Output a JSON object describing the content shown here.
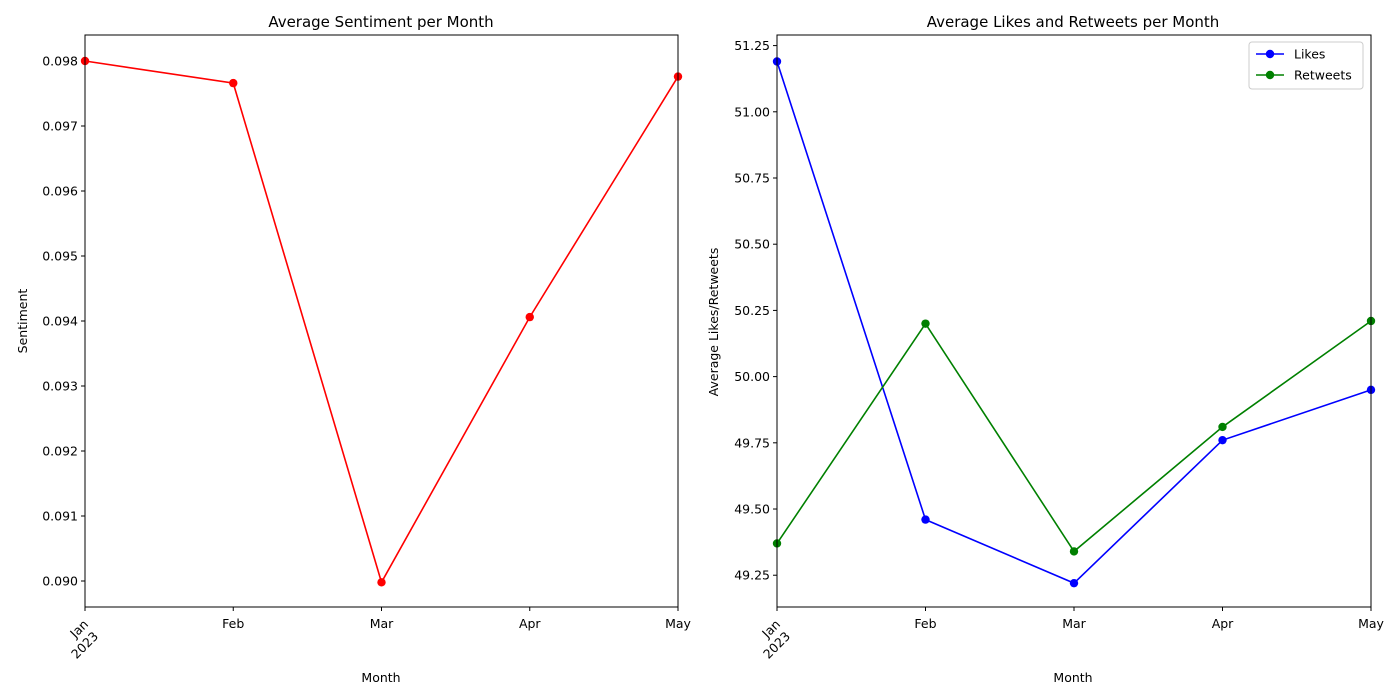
{
  "chart_data": [
    {
      "type": "line",
      "title": "Average Sentiment per Month",
      "xlabel": "Month",
      "ylabel": "Sentiment",
      "categories": [
        "Jan",
        "Feb",
        "Mar",
        "Apr",
        "May"
      ],
      "x_year_label": "2023",
      "ylim": [
        0.0896,
        0.0984
      ],
      "yticks": [
        "0.090",
        "0.091",
        "0.092",
        "0.093",
        "0.094",
        "0.095",
        "0.096",
        "0.097",
        "0.098"
      ],
      "grid": false,
      "series": [
        {
          "color": "#ff0000",
          "values": [
            0.098,
            0.09766,
            0.08998,
            0.09406,
            0.09776
          ]
        }
      ]
    },
    {
      "type": "line",
      "title": "Average Likes and Retweets per Month",
      "xlabel": "Month",
      "ylabel": "Average Likes/Retweets",
      "categories": [
        "Jan",
        "Feb",
        "Mar",
        "Apr",
        "May"
      ],
      "x_year_label": "2023",
      "ylim": [
        49.13,
        51.29
      ],
      "yticks": [
        "49.25",
        "49.50",
        "49.75",
        "50.00",
        "50.25",
        "50.50",
        "50.75",
        "51.00",
        "51.25"
      ],
      "grid": false,
      "legend": "top-right",
      "series": [
        {
          "name": "Likes",
          "color": "#0000ff",
          "values": [
            51.19,
            49.46,
            49.22,
            49.76,
            49.95
          ]
        },
        {
          "name": "Retweets",
          "color": "#008000",
          "values": [
            49.37,
            50.2,
            49.34,
            49.81,
            50.21
          ]
        }
      ]
    }
  ]
}
